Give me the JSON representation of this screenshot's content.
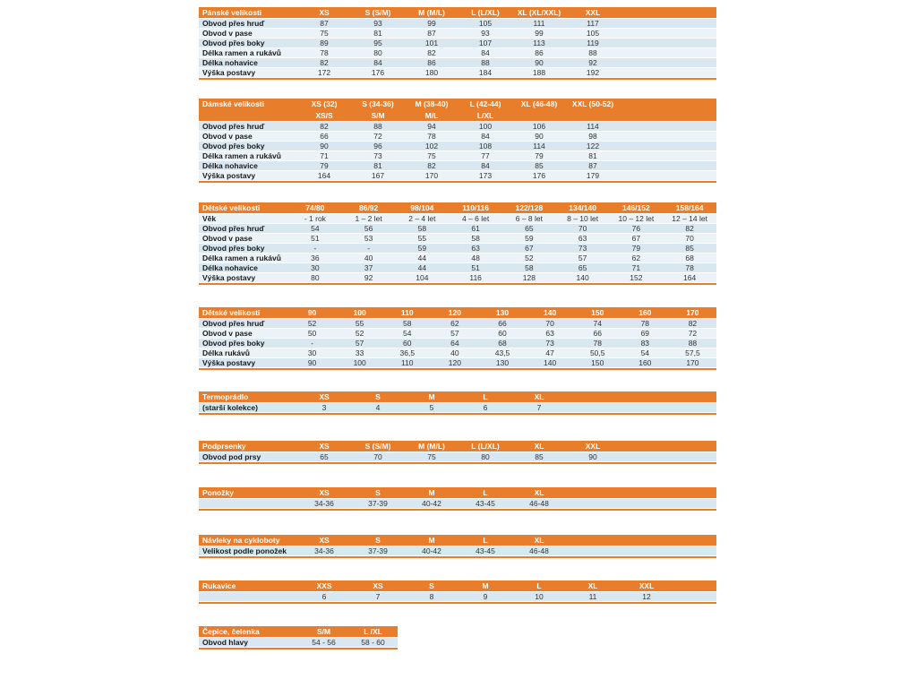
{
  "colors": {
    "header_bg": "#e87d2b",
    "header_text": "#ffffff",
    "row_dark": "#d8e7f0",
    "row_light": "#ebf3f8",
    "label_text": "#1a1a1a",
    "value_text": "#333333"
  },
  "tables": [
    {
      "id": "panske",
      "title": "Pánské velikosti",
      "columns": [
        [
          "XS"
        ],
        [
          "S (S/M)"
        ],
        [
          "M (M/L)"
        ],
        [
          "L (L/XL)"
        ],
        [
          "XL (XL/XXL)"
        ],
        [
          "XXL"
        ]
      ],
      "rows": [
        {
          "label": "Obvod přes hruď",
          "values": [
            "87",
            "93",
            "99",
            "105",
            "111",
            "117"
          ]
        },
        {
          "label": "Obvod v pase",
          "values": [
            "75",
            "81",
            "87",
            "93",
            "99",
            "105"
          ]
        },
        {
          "label": "Obvod přes boky",
          "values": [
            "89",
            "95",
            "101",
            "107",
            "113",
            "119"
          ]
        },
        {
          "label": "Délka ramen a rukávů",
          "values": [
            "78",
            "80",
            "82",
            "84",
            "86",
            "88"
          ]
        },
        {
          "label": "Délka nohavice",
          "values": [
            "82",
            "84",
            "86",
            "88",
            "90",
            "92"
          ]
        },
        {
          "label": "Výška postavy",
          "values": [
            "172",
            "176",
            "180",
            "184",
            "188",
            "192"
          ]
        }
      ]
    },
    {
      "id": "damske",
      "title": "Dámské velikosti",
      "columns": [
        [
          "XS (32)",
          "XS/S"
        ],
        [
          "S (34-36)",
          "S/M"
        ],
        [
          "M (38-40)",
          "M/L"
        ],
        [
          "L (42-44)",
          "L/XL"
        ],
        [
          "XL (46-48)"
        ],
        [
          "XXL (50-52)"
        ]
      ],
      "rows": [
        {
          "label": "Obvod přes hruď",
          "values": [
            "82",
            "88",
            "94",
            "100",
            "106",
            "114"
          ]
        },
        {
          "label": "Obvod v pase",
          "values": [
            "66",
            "72",
            "78",
            "84",
            "90",
            "98"
          ]
        },
        {
          "label": "Obvod přes boky",
          "values": [
            "90",
            "96",
            "102",
            "108",
            "114",
            "122"
          ]
        },
        {
          "label": "Délka ramen a rukávů",
          "values": [
            "71",
            "73",
            "75",
            "77",
            "79",
            "81"
          ]
        },
        {
          "label": "Délka nohavice",
          "values": [
            "79",
            "81",
            "82",
            "84",
            "85",
            "87"
          ]
        },
        {
          "label": "Výška postavy",
          "values": [
            "164",
            "167",
            "170",
            "173",
            "176",
            "179"
          ]
        }
      ]
    },
    {
      "id": "detske1",
      "title": "Dětské velikosti",
      "columns": [
        [
          "74/80"
        ],
        [
          "86/92"
        ],
        [
          "98/104"
        ],
        [
          "110/116"
        ],
        [
          "122/128"
        ],
        [
          "134/140"
        ],
        [
          "146/152"
        ],
        [
          "158/164"
        ]
      ],
      "rows": [
        {
          "label": "Věk",
          "values": [
            "- 1 rok",
            "1 – 2 let",
            "2 – 4 let",
            "4 – 6 let",
            "6 – 8 let",
            "8 – 10 let",
            "10 – 12 let",
            "12 – 14 let"
          ]
        },
        {
          "label": "Obvod přes hruď",
          "values": [
            "54",
            "56",
            "58",
            "61",
            "65",
            "70",
            "76",
            "82"
          ]
        },
        {
          "label": "Obvod v pase",
          "values": [
            "51",
            "53",
            "55",
            "58",
            "59",
            "63",
            "67",
            "70"
          ]
        },
        {
          "label": "Obvod přes boky",
          "values": [
            "-",
            "-",
            "59",
            "63",
            "67",
            "73",
            "79",
            "85"
          ]
        },
        {
          "label": "Délka ramen a rukávů",
          "values": [
            "36",
            "40",
            "44",
            "48",
            "52",
            "57",
            "62",
            "68"
          ]
        },
        {
          "label": "Délka nohavice",
          "values": [
            "30",
            "37",
            "44",
            "51",
            "58",
            "65",
            "71",
            "78"
          ]
        },
        {
          "label": "Výška postavy",
          "values": [
            "80",
            "92",
            "104",
            "116",
            "128",
            "140",
            "152",
            "164"
          ]
        }
      ]
    },
    {
      "id": "detske2",
      "title": "Dětské velikosti",
      "columns": [
        [
          "90"
        ],
        [
          "100"
        ],
        [
          "110"
        ],
        [
          "120"
        ],
        [
          "130"
        ],
        [
          "140"
        ],
        [
          "150"
        ],
        [
          "160"
        ],
        [
          "170"
        ]
      ],
      "rows": [
        {
          "label": "Obvod přes hruď",
          "values": [
            "52",
            "55",
            "58",
            "62",
            "66",
            "70",
            "74",
            "78",
            "82"
          ]
        },
        {
          "label": "Obvod v pase",
          "values": [
            "50",
            "52",
            "54",
            "57",
            "60",
            "63",
            "66",
            "69",
            "72"
          ]
        },
        {
          "label": "Obvod přes boky",
          "values": [
            "-",
            "57",
            "60",
            "64",
            "68",
            "73",
            "78",
            "83",
            "88"
          ]
        },
        {
          "label": "Délka rukávů",
          "values": [
            "30",
            "33",
            "36,5",
            "40",
            "43,5",
            "47",
            "50,5",
            "54",
            "57,5"
          ]
        },
        {
          "label": "Výška postavy",
          "values": [
            "90",
            "100",
            "110",
            "120",
            "130",
            "140",
            "150",
            "160",
            "170"
          ]
        }
      ]
    },
    {
      "id": "termopradlo",
      "title": "Termoprádlo",
      "columns": [
        [
          "XS"
        ],
        [
          "S"
        ],
        [
          "M"
        ],
        [
          "L"
        ],
        [
          "XL"
        ]
      ],
      "rows": [
        {
          "label": "(starší kolekce)",
          "values": [
            "3",
            "4",
            "5",
            "6",
            "7"
          ]
        }
      ]
    },
    {
      "id": "podprsenky",
      "title": "Podprsenky",
      "columns": [
        [
          "XS"
        ],
        [
          "S (S/M)"
        ],
        [
          "M (M/L)"
        ],
        [
          "L (L/XL)"
        ],
        [
          "XL"
        ],
        [
          "XXL"
        ]
      ],
      "rows": [
        {
          "label": "Obvod pod prsy",
          "values": [
            "65",
            "70",
            "75",
            "80",
            "85",
            "90"
          ]
        }
      ]
    },
    {
      "id": "ponozky",
      "title": "Ponožky",
      "columns": [
        [
          "XS"
        ],
        [
          "S"
        ],
        [
          "M"
        ],
        [
          "L"
        ],
        [
          "XL"
        ]
      ],
      "rows": [
        {
          "label": "",
          "values": [
            "34-36",
            "37-39",
            "40-42",
            "43-45",
            "46-48"
          ]
        }
      ]
    },
    {
      "id": "navleky",
      "title": "Návleky na cykloboty",
      "columns": [
        [
          "XS"
        ],
        [
          "S"
        ],
        [
          "M"
        ],
        [
          "L"
        ],
        [
          "XL"
        ]
      ],
      "rows": [
        {
          "label": "Velikost podle ponožek",
          "values": [
            "34-36",
            "37-39",
            "40-42",
            "43-45",
            "46-48"
          ]
        }
      ]
    },
    {
      "id": "rukavice",
      "title": "Rukavice",
      "columns": [
        [
          "XXS"
        ],
        [
          "XS"
        ],
        [
          "S"
        ],
        [
          "M"
        ],
        [
          "L"
        ],
        [
          "XL"
        ],
        [
          "XXL"
        ]
      ],
      "rows": [
        {
          "label": "",
          "values": [
            "6",
            "7",
            "8",
            "9",
            "10",
            "11",
            "12"
          ]
        }
      ]
    },
    {
      "id": "cepice",
      "title": "Čepice, čelenka",
      "columns": [
        [
          "S/M"
        ],
        [
          "L /XL"
        ]
      ],
      "rows": [
        {
          "label": "Obvod hlavy",
          "values": [
            "54 - 56",
            "58 - 60"
          ]
        }
      ]
    }
  ]
}
